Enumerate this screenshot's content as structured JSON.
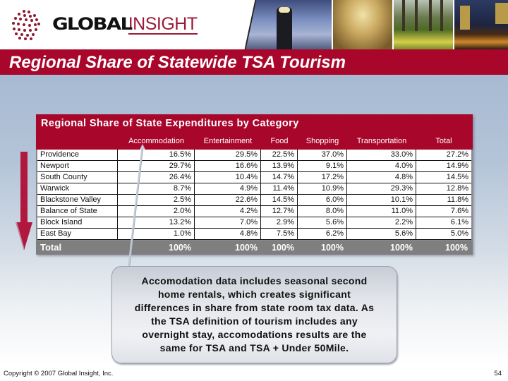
{
  "header": {
    "logo_primary": "GLOBAL",
    "logo_secondary": "INSIGHT",
    "photos": [
      "lighthouse-photo",
      "ballroom-photo",
      "garden-photo",
      "city-night-photo"
    ]
  },
  "page": {
    "title": "Regional Share of Statewide TSA Tourism"
  },
  "table": {
    "title": "Regional Share of State Expenditures by Category",
    "columns": [
      "Accommodation",
      "Entertainment",
      "Food",
      "Shopping",
      "Transportation",
      "Total"
    ],
    "rows": [
      {
        "region": "Providence",
        "values": [
          "16.5%",
          "29.5%",
          "22.5%",
          "37.0%",
          "33.0%",
          "27.2%"
        ]
      },
      {
        "region": "Newport",
        "values": [
          "29.7%",
          "16.6%",
          "13.9%",
          "9.1%",
          "4.0%",
          "14.9%"
        ]
      },
      {
        "region": "South County",
        "values": [
          "26.4%",
          "10.4%",
          "14.7%",
          "17.2%",
          "4.8%",
          "14.5%"
        ]
      },
      {
        "region": "Warwick",
        "values": [
          "8.7%",
          "4.9%",
          "11.4%",
          "10.9%",
          "29.3%",
          "12.8%"
        ]
      },
      {
        "region": "Blackstone Valley",
        "values": [
          "2.5%",
          "22.6%",
          "14.5%",
          "6.0%",
          "10.1%",
          "11.8%"
        ]
      },
      {
        "region": "Balance of State",
        "values": [
          "2.0%",
          "4.2%",
          "12.7%",
          "8.0%",
          "11.0%",
          "7.6%"
        ]
      },
      {
        "region": "Block Island",
        "values": [
          "13.2%",
          "7.0%",
          "2.9%",
          "5.6%",
          "2.2%",
          "6.1%"
        ]
      },
      {
        "region": "East Bay",
        "values": [
          "1.0%",
          "4.8%",
          "7.5%",
          "6.2%",
          "5.6%",
          "5.0%"
        ]
      }
    ],
    "total": {
      "label": "Total",
      "values": [
        "100%",
        "100%",
        "100%",
        "100%",
        "100%",
        "100%"
      ]
    }
  },
  "callout": {
    "lines": [
      "Accomodation data includes seasonal second",
      "home rentals, which creates significant",
      "differences in share from state room tax data. As",
      "the TSA definition of tourism includes any",
      "overnight stay, accomodations results are the",
      "same for TSA and TSA + Under 50Mile."
    ]
  },
  "footer": {
    "copyright": "Copyright © 2007 Global Insight, Inc.",
    "page_number": "54"
  },
  "colors": {
    "brand_red": "#a8072b",
    "total_row_gray": "#7f7f7f",
    "logo_red": "#9b1b3a"
  }
}
